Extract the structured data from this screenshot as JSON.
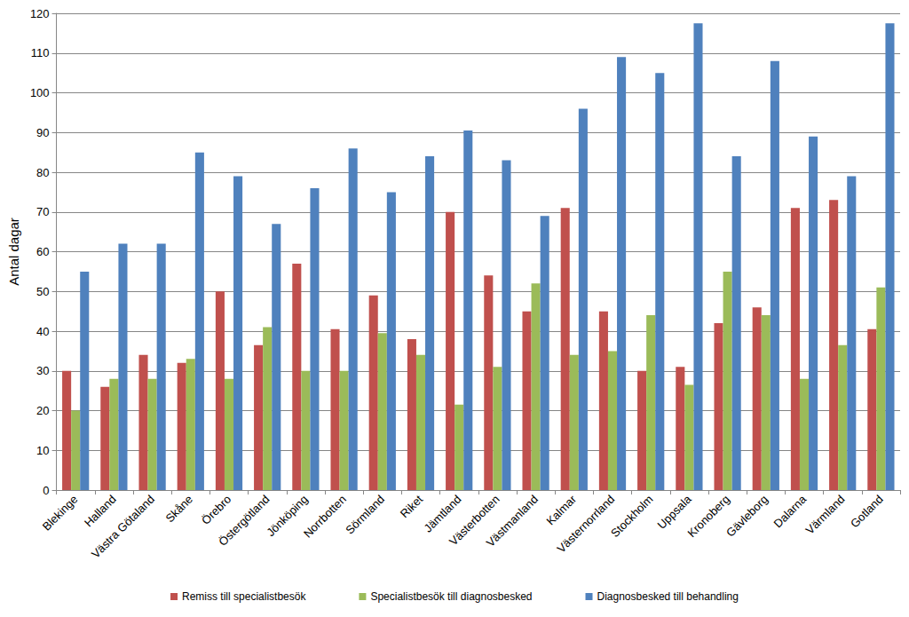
{
  "chart_data": {
    "type": "bar",
    "ylabel": "Antal dagar",
    "categories": [
      "Blekinge",
      "Halland",
      "Västra Götaland",
      "Skåne",
      "Örebro",
      "Östergötland",
      "Jönköping",
      "Norrbotten",
      "Sörmland",
      "Riket",
      "Jämtland",
      "Västerbotten",
      "Västmanland",
      "Kalmar",
      "Västernorrland",
      "Stockholm",
      "Uppsala",
      "Kronoberg",
      "Gävleborg",
      "Dalarna",
      "Värmland",
      "Gotland"
    ],
    "series": [
      {
        "name": "Remiss till specialistbesök",
        "color": "#c0504d",
        "values": [
          30,
          26,
          34,
          32,
          50,
          36.5,
          57,
          40.5,
          49,
          38,
          70,
          54,
          45,
          71,
          45,
          30,
          31,
          42,
          46,
          71,
          73,
          40.5
        ]
      },
      {
        "name": "Specialistbesök till diagnosbesked",
        "color": "#9bbb59",
        "values": [
          20,
          28,
          28,
          33,
          28,
          41,
          30,
          30,
          39.5,
          34,
          21.5,
          31,
          52,
          34,
          35,
          44,
          26.5,
          55,
          44,
          28,
          36.5,
          51
        ]
      },
      {
        "name": "Diagnosbesked till behandling",
        "color": "#4f81bd",
        "values": [
          55,
          62,
          62,
          85,
          79,
          67,
          76,
          86,
          75,
          84,
          90.5,
          83,
          69,
          96,
          109,
          105,
          117.5,
          84,
          108,
          89,
          79,
          117.5
        ]
      }
    ],
    "ylim": [
      0,
      120
    ],
    "yticks": [
      0,
      10,
      20,
      30,
      40,
      50,
      60,
      70,
      80,
      90,
      100,
      110,
      120
    ],
    "grid": true,
    "legend": "bottom"
  }
}
